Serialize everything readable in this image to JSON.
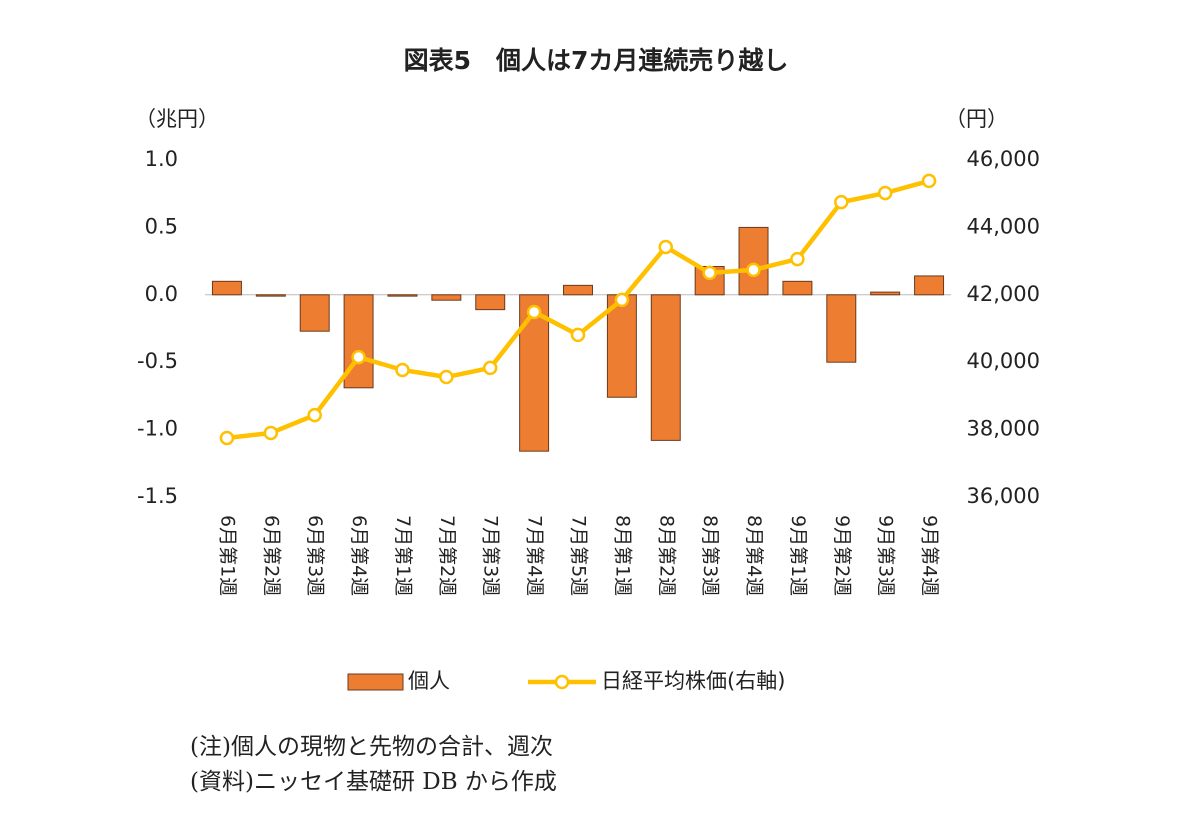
{
  "chart_data": {
    "type": "bar",
    "title": "図表5　個人は7カ月連続売り越し",
    "y_label": "（兆円）",
    "y2_label": "（円）",
    "categories": [
      "6月第1週",
      "6月第2週",
      "6月第3週",
      "6月第4週",
      "7月第1週",
      "7月第2週",
      "7月第3週",
      "7月第4週",
      "7月第5週",
      "8月第1週",
      "8月第2週",
      "8月第3週",
      "8月第4週",
      "9月第1週",
      "9月第2週",
      "9月第3週",
      "9月第4週"
    ],
    "series": [
      {
        "name": "個人",
        "type": "bar",
        "color": "#ED7D31",
        "values": [
          0.1,
          -0.01,
          -0.27,
          -0.69,
          -0.01,
          -0.04,
          -0.11,
          -1.16,
          0.07,
          -0.76,
          -1.08,
          0.21,
          0.5,
          0.1,
          -0.5,
          0.02,
          0.14
        ]
      },
      {
        "name": "日経平均株価(右軸)",
        "type": "line",
        "axis": "y2",
        "color": "#FFC000",
        "values": [
          37750,
          37900,
          38430,
          40150,
          39770,
          39560,
          39830,
          41490,
          40810,
          41850,
          43420,
          42650,
          42740,
          43060,
          44750,
          45020,
          45380
        ]
      }
    ],
    "ylim": [
      -1.5,
      1.0
    ],
    "yticks": [
      {
        "value": 1.0,
        "label": "1.0"
      },
      {
        "value": 0.5,
        "label": "0.5"
      },
      {
        "value": 0,
        "label": "0.0"
      },
      {
        "value": -0.5,
        "label": "-0.5"
      },
      {
        "value": -1.0,
        "label": "-1.0"
      },
      {
        "value": -1.5,
        "label": "-1.5"
      }
    ],
    "y2lim": [
      36000,
      46000
    ],
    "y2ticks": [
      {
        "value": 46000,
        "label": "46,000"
      },
      {
        "value": 44000,
        "label": "44,000"
      },
      {
        "value": 42000,
        "label": "42,000"
      },
      {
        "value": 40000,
        "label": "40,000"
      },
      {
        "value": 38000,
        "label": "38,000"
      },
      {
        "value": 36000,
        "label": "36,000"
      }
    ],
    "grid": false,
    "notes": [
      "(注)個人の現物と先物の合計、週次",
      "(資料)ニッセイ基礎研 DB から作成"
    ]
  }
}
